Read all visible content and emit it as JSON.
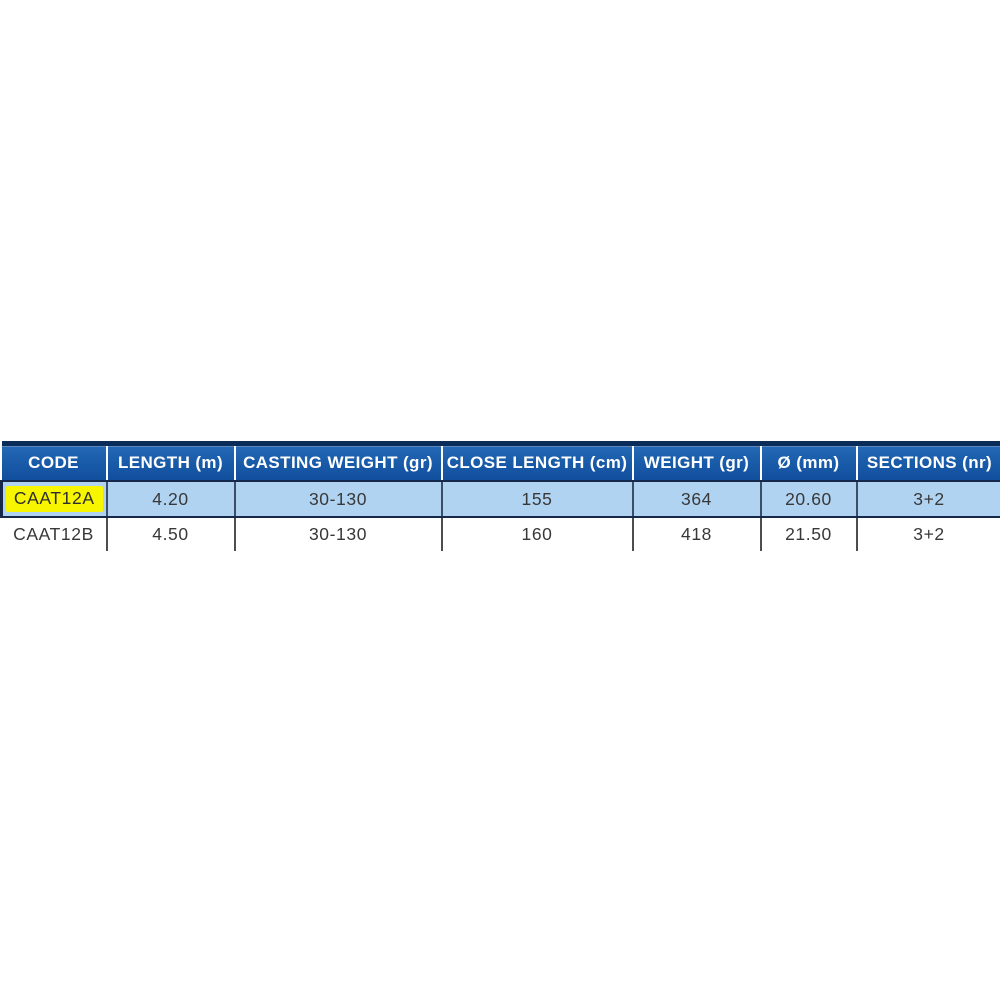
{
  "table": {
    "columns": [
      "CODE",
      "LENGTH (m)",
      "CASTING WEIGHT (gr)",
      "CLOSE LENGTH (cm)",
      "WEIGHT (gr)",
      "Ø (mm)",
      "SECTIONS (nr)"
    ],
    "rows": [
      {
        "highlighted": true,
        "cells": [
          "CAAT12A",
          "4.20",
          "30-130",
          "155",
          "364",
          "20.60",
          "3+2"
        ]
      },
      {
        "highlighted": false,
        "cells": [
          "CAAT12B",
          "4.50",
          "30-130",
          "160",
          "418",
          "21.50",
          "3+2"
        ]
      }
    ],
    "colors": {
      "header_bg": "#1a5dab",
      "header_top_band": "#0a2c59",
      "header_text": "#ffffff",
      "header_separator": "#ffffff",
      "row_alt_bg": "#b0d3f2",
      "row_plain_bg": "#ffffff",
      "highlight_bg": "#f8f500",
      "cell_text": "#383838",
      "divider_dark": "#17294a",
      "divider_gray": "#4d4d4d"
    }
  },
  "chart_data": {
    "type": "table",
    "title": "",
    "columns": [
      "CODE",
      "LENGTH (m)",
      "CASTING WEIGHT (gr)",
      "CLOSE LENGTH (cm)",
      "WEIGHT (gr)",
      "Ø (mm)",
      "SECTIONS (nr)"
    ],
    "rows": [
      [
        "CAAT12A",
        "4.20",
        "30-130",
        "155",
        "364",
        "20.60",
        "3+2"
      ],
      [
        "CAAT12B",
        "4.50",
        "30-130",
        "160",
        "418",
        "21.50",
        "3+2"
      ]
    ],
    "layout_hints": {
      "header_style": "blue banner, white bold text",
      "row_1_style": "light blue shading, CODE value highlighted yellow",
      "row_2_style": "white background"
    }
  }
}
